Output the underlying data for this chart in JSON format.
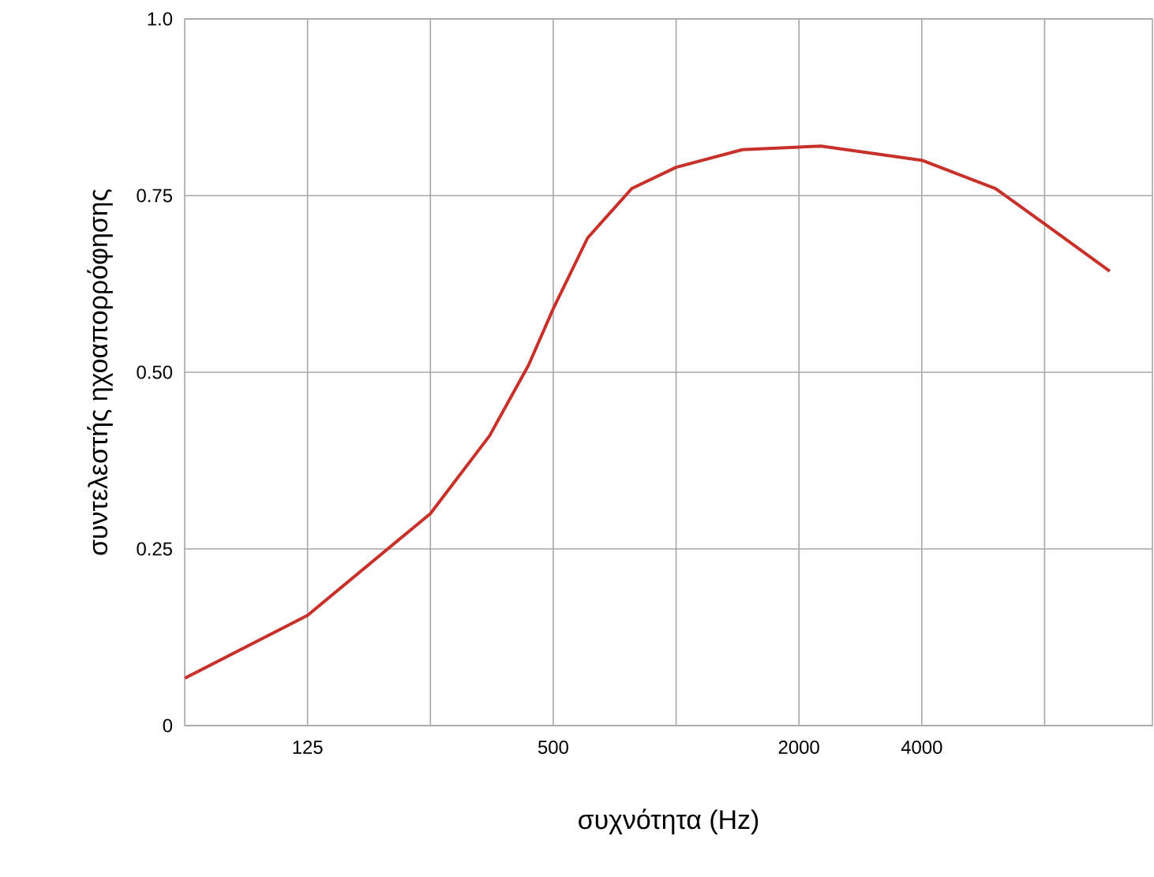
{
  "chart_data": {
    "type": "line",
    "xlabel": "συχνότητα (Hz)",
    "ylabel": "συντελεστής ηχοαπορρόφησης",
    "xlim": [
      62.5,
      14700
    ],
    "ylim": [
      0,
      1
    ],
    "log": "x",
    "xticks": [
      125,
      {
        "value": 250,
        "label": null
      },
      500,
      {
        "value": 1000,
        "label": null
      },
      2000,
      4000,
      {
        "value": 8000,
        "label": null
      }
    ],
    "yticks": [
      0,
      {
        "value": 0.25,
        "label": "0.25"
      },
      {
        "value": 0.5,
        "label": "0.50"
      },
      {
        "value": 0.75,
        "label": "0.75"
      },
      {
        "value": 1,
        "label": "1.0"
      }
    ],
    "grid": true,
    "marker": "none",
    "line_style": "solid",
    "series": [
      {
        "color": "#c8302a",
        "x": [
          62.5,
          125,
          250,
          349,
          435,
          500,
          607,
          779,
          1000,
          1454,
          2266,
          4000,
          6063,
          8000,
          11555
        ],
        "values": [
          0.067,
          0.156,
          0.3,
          0.41,
          0.51,
          0.59,
          0.69,
          0.76,
          0.79,
          0.815,
          0.82,
          0.8,
          0.76,
          0.71,
          0.643
        ]
      }
    ]
  }
}
